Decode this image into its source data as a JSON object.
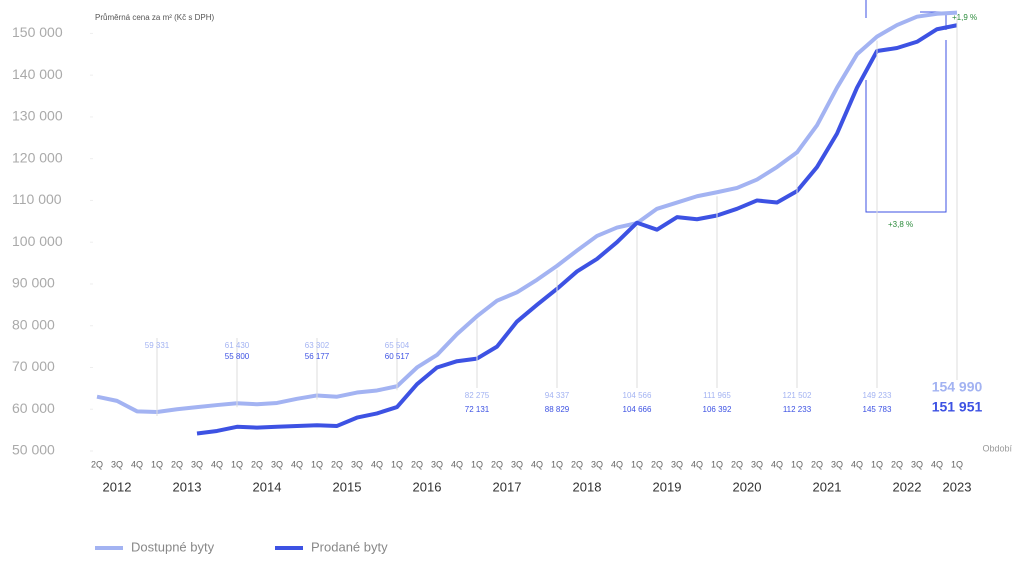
{
  "chart_data": {
    "type": "line",
    "subtitle": "Průměrná cena za m² (Kč s DPH)",
    "x_label": "Období",
    "categories": [
      "2Q",
      "3Q",
      "4Q",
      "1Q",
      "2Q",
      "3Q",
      "4Q",
      "1Q",
      "2Q",
      "3Q",
      "4Q",
      "1Q",
      "2Q",
      "3Q",
      "4Q",
      "1Q",
      "2Q",
      "3Q",
      "4Q",
      "1Q",
      "2Q",
      "3Q",
      "4Q",
      "1Q",
      "2Q",
      "3Q",
      "4Q",
      "1Q",
      "2Q",
      "3Q",
      "4Q",
      "1Q",
      "2Q",
      "3Q",
      "4Q",
      "1Q",
      "2Q",
      "3Q",
      "4Q",
      "1Q",
      "2Q",
      "3Q",
      "4Q",
      "1Q"
    ],
    "year_labels": [
      "2012",
      "2013",
      "2014",
      "2015",
      "2016",
      "2017",
      "2018",
      "2019",
      "2020",
      "2021",
      "2022",
      "2023"
    ],
    "ylim": [
      50000,
      158000
    ],
    "yticks": [
      {
        "value": 50000,
        "label": "50 000"
      },
      {
        "value": 60000,
        "label": "60 000"
      },
      {
        "value": 70000,
        "label": "70 000"
      },
      {
        "value": 80000,
        "label": "80 000"
      },
      {
        "value": 90000,
        "label": "90 000"
      },
      {
        "value": 100000,
        "label": "100 000"
      },
      {
        "value": 110000,
        "label": "110 000"
      },
      {
        "value": 120000,
        "label": "120 000"
      },
      {
        "value": 130000,
        "label": "130 000"
      },
      {
        "value": 140000,
        "label": "140 000"
      },
      {
        "value": 150000,
        "label": "150 000"
      }
    ],
    "series": [
      {
        "name": "Dostupné byty",
        "color": "#a3b3f2",
        "values": [
          63000,
          62000,
          59500,
          59331,
          60000,
          60500,
          61000,
          61430,
          61200,
          61500,
          62500,
          63302,
          63000,
          64000,
          64500,
          65504,
          70000,
          73000,
          78000,
          82275,
          86000,
          88000,
          91000,
          94337,
          98000,
          101500,
          103500,
          104566,
          108000,
          109500,
          111000,
          111965,
          113000,
          115000,
          118000,
          121502,
          128000,
          137000,
          145000,
          149233,
          152000,
          154000,
          154700,
          154990
        ],
        "value_labels": [
          null,
          null,
          null,
          "59 331",
          null,
          null,
          null,
          "61 430",
          null,
          null,
          null,
          "63 302",
          null,
          null,
          null,
          "65 504",
          null,
          null,
          null,
          "82 275",
          null,
          null,
          null,
          "94 337",
          null,
          null,
          null,
          "104 566",
          null,
          null,
          null,
          "111 965",
          null,
          null,
          null,
          "121 502",
          null,
          null,
          null,
          "149 233",
          null,
          null,
          null,
          "154 990"
        ]
      },
      {
        "name": "Prodané byty",
        "color": "#3d52e3",
        "values": [
          null,
          null,
          null,
          null,
          null,
          54200,
          54800,
          55800,
          55600,
          55800,
          56000,
          56177,
          56000,
          58000,
          59000,
          60517,
          66000,
          70000,
          71500,
          72131,
          75000,
          81000,
          85000,
          88829,
          93000,
          96000,
          100000,
          104666,
          103000,
          106000,
          105500,
          106392,
          108000,
          110000,
          109500,
          112233,
          118000,
          126000,
          137000,
          145783,
          146500,
          148000,
          151000,
          151951
        ],
        "value_labels": [
          null,
          null,
          null,
          null,
          null,
          null,
          null,
          "55 800",
          null,
          null,
          null,
          "56 177",
          null,
          null,
          null,
          "60 517",
          null,
          null,
          null,
          "72 131",
          null,
          null,
          null,
          "88 829",
          null,
          null,
          null,
          "104 666",
          null,
          null,
          null,
          "106 392",
          null,
          null,
          null,
          "112 233",
          null,
          null,
          null,
          "145 783",
          null,
          null,
          null,
          "151 951"
        ]
      }
    ],
    "annotations": [
      "+1,9 %",
      "+3,8 %"
    ]
  }
}
